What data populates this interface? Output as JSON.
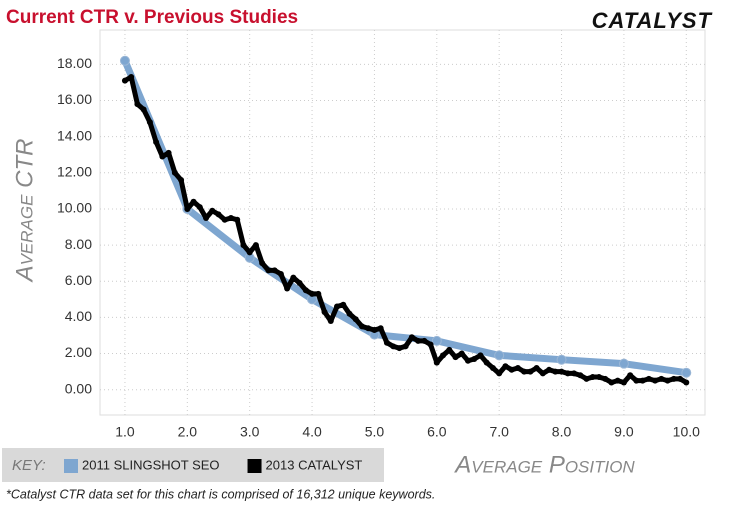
{
  "chart_data": {
    "type": "line",
    "title": "Current CTR v. Previous Studies",
    "logo": "CATALYST",
    "x_label": "Average Position",
    "y_label": "Average CTR",
    "legend_title": "KEY:",
    "footnote": "*Catalyst CTR data set for this chart is comprised of 16,312 unique keywords.",
    "xlim": [
      0.6,
      10.3
    ],
    "ylim": [
      -1.4,
      19.9
    ],
    "xticks": [
      {
        "value": 1,
        "label": "1.0"
      },
      {
        "value": 2,
        "label": "2.0"
      },
      {
        "value": 3,
        "label": "3.0"
      },
      {
        "value": 4,
        "label": "4.0"
      },
      {
        "value": 5,
        "label": "5.0"
      },
      {
        "value": 6,
        "label": "6.0"
      },
      {
        "value": 7,
        "label": "7.0"
      },
      {
        "value": 8,
        "label": "8.0"
      },
      {
        "value": 9,
        "label": "9.0"
      },
      {
        "value": 10,
        "label": "10.0"
      }
    ],
    "yticks": [
      {
        "value": 0,
        "label": "0.00"
      },
      {
        "value": 2,
        "label": "2.00"
      },
      {
        "value": 4,
        "label": "4.00"
      },
      {
        "value": 6,
        "label": "6.00"
      },
      {
        "value": 8,
        "label": "8.00"
      },
      {
        "value": 10,
        "label": "10.00"
      },
      {
        "value": 12,
        "label": "12.00"
      },
      {
        "value": 14,
        "label": "14.00"
      },
      {
        "value": 16,
        "label": "16.00"
      },
      {
        "value": 18,
        "label": "18.00"
      }
    ],
    "grid": true,
    "series": [
      {
        "name": "2011 SLINGSHOT SEO",
        "color": "#7ea6d0",
        "x": [
          1,
          2,
          3,
          4,
          5,
          6,
          7,
          8,
          9,
          10
        ],
        "values": [
          18.2,
          10.0,
          7.3,
          5.0,
          3.05,
          2.7,
          1.9,
          1.66,
          1.44,
          0.94
        ]
      },
      {
        "name": "2013 CATALYST",
        "color": "#000000",
        "x": [
          1.0,
          1.1,
          1.2,
          1.3,
          1.4,
          1.5,
          1.6,
          1.7,
          1.8,
          1.9,
          2.0,
          2.1,
          2.2,
          2.3,
          2.4,
          2.5,
          2.6,
          2.7,
          2.8,
          2.9,
          3.0,
          3.1,
          3.2,
          3.3,
          3.4,
          3.5,
          3.6,
          3.7,
          3.8,
          3.9,
          4.0,
          4.1,
          4.2,
          4.3,
          4.4,
          4.5,
          4.6,
          4.7,
          4.8,
          4.9,
          5.0,
          5.1,
          5.2,
          5.3,
          5.4,
          5.5,
          5.6,
          5.7,
          5.8,
          5.9,
          6.0,
          6.1,
          6.2,
          6.3,
          6.4,
          6.5,
          6.6,
          6.7,
          6.8,
          6.9,
          7.0,
          7.1,
          7.2,
          7.3,
          7.4,
          7.5,
          7.6,
          7.7,
          7.8,
          7.9,
          8.0,
          8.1,
          8.2,
          8.3,
          8.4,
          8.5,
          8.6,
          8.7,
          8.8,
          8.9,
          9.0,
          9.1,
          9.2,
          9.3,
          9.4,
          9.5,
          9.6,
          9.7,
          9.8,
          9.9,
          10.0
        ],
        "values": [
          17.1,
          17.3,
          15.8,
          15.5,
          14.8,
          13.7,
          12.9,
          13.1,
          12.0,
          11.6,
          10.0,
          10.4,
          10.1,
          9.5,
          9.9,
          9.7,
          9.4,
          9.5,
          9.4,
          8.0,
          7.6,
          8.0,
          7.0,
          6.6,
          6.6,
          6.4,
          5.6,
          6.2,
          5.9,
          5.5,
          5.3,
          5.3,
          4.3,
          3.8,
          4.6,
          4.7,
          4.2,
          3.9,
          3.5,
          3.4,
          3.3,
          3.4,
          2.6,
          2.4,
          2.3,
          2.4,
          2.9,
          2.7,
          2.7,
          2.5,
          1.5,
          1.9,
          2.2,
          1.8,
          2.0,
          1.6,
          1.7,
          1.9,
          1.5,
          1.2,
          0.9,
          1.3,
          1.1,
          1.2,
          1.0,
          1.0,
          1.2,
          0.9,
          1.1,
          1.0,
          1.0,
          0.9,
          0.9,
          0.8,
          0.6,
          0.7,
          0.7,
          0.6,
          0.4,
          0.5,
          0.4,
          0.8,
          0.5,
          0.5,
          0.6,
          0.5,
          0.6,
          0.5,
          0.6,
          0.6,
          0.4
        ]
      }
    ]
  }
}
